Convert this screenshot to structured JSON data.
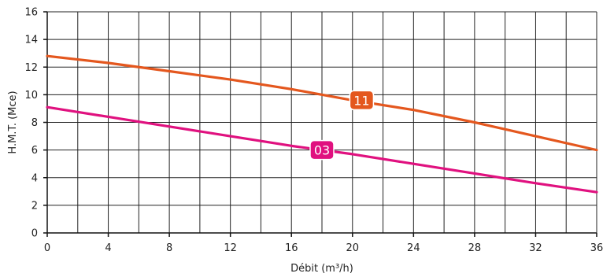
{
  "chart_data": {
    "type": "line",
    "xlabel": "Débit (m³/h)",
    "ylabel": "H.M.T. (Mce)",
    "xlim": [
      0,
      36
    ],
    "ylim": [
      0,
      16
    ],
    "grid": true,
    "x_grid_step": 2,
    "y_grid_step": 2,
    "x_ticks": [
      0,
      4,
      8,
      12,
      16,
      20,
      24,
      28,
      32,
      36
    ],
    "y_ticks": [
      0,
      2,
      4,
      6,
      8,
      10,
      12,
      14,
      16
    ],
    "series": [
      {
        "name": "11",
        "color": "#e4571e",
        "label_at": [
          20.6,
          9.6
        ],
        "x": [
          0,
          4,
          8,
          12,
          16,
          20,
          24,
          28,
          32,
          36
        ],
        "y": [
          12.8,
          12.3,
          11.7,
          11.1,
          10.4,
          9.6,
          8.9,
          8.0,
          7.0,
          6.0
        ]
      },
      {
        "name": "03",
        "color": "#e0117f",
        "label_at": [
          18.0,
          6.0
        ],
        "x": [
          0,
          4,
          8,
          12,
          16,
          20,
          24,
          28,
          32,
          36
        ],
        "y": [
          9.1,
          8.4,
          7.7,
          7.0,
          6.3,
          5.7,
          5.0,
          4.3,
          3.6,
          2.95
        ]
      }
    ]
  }
}
